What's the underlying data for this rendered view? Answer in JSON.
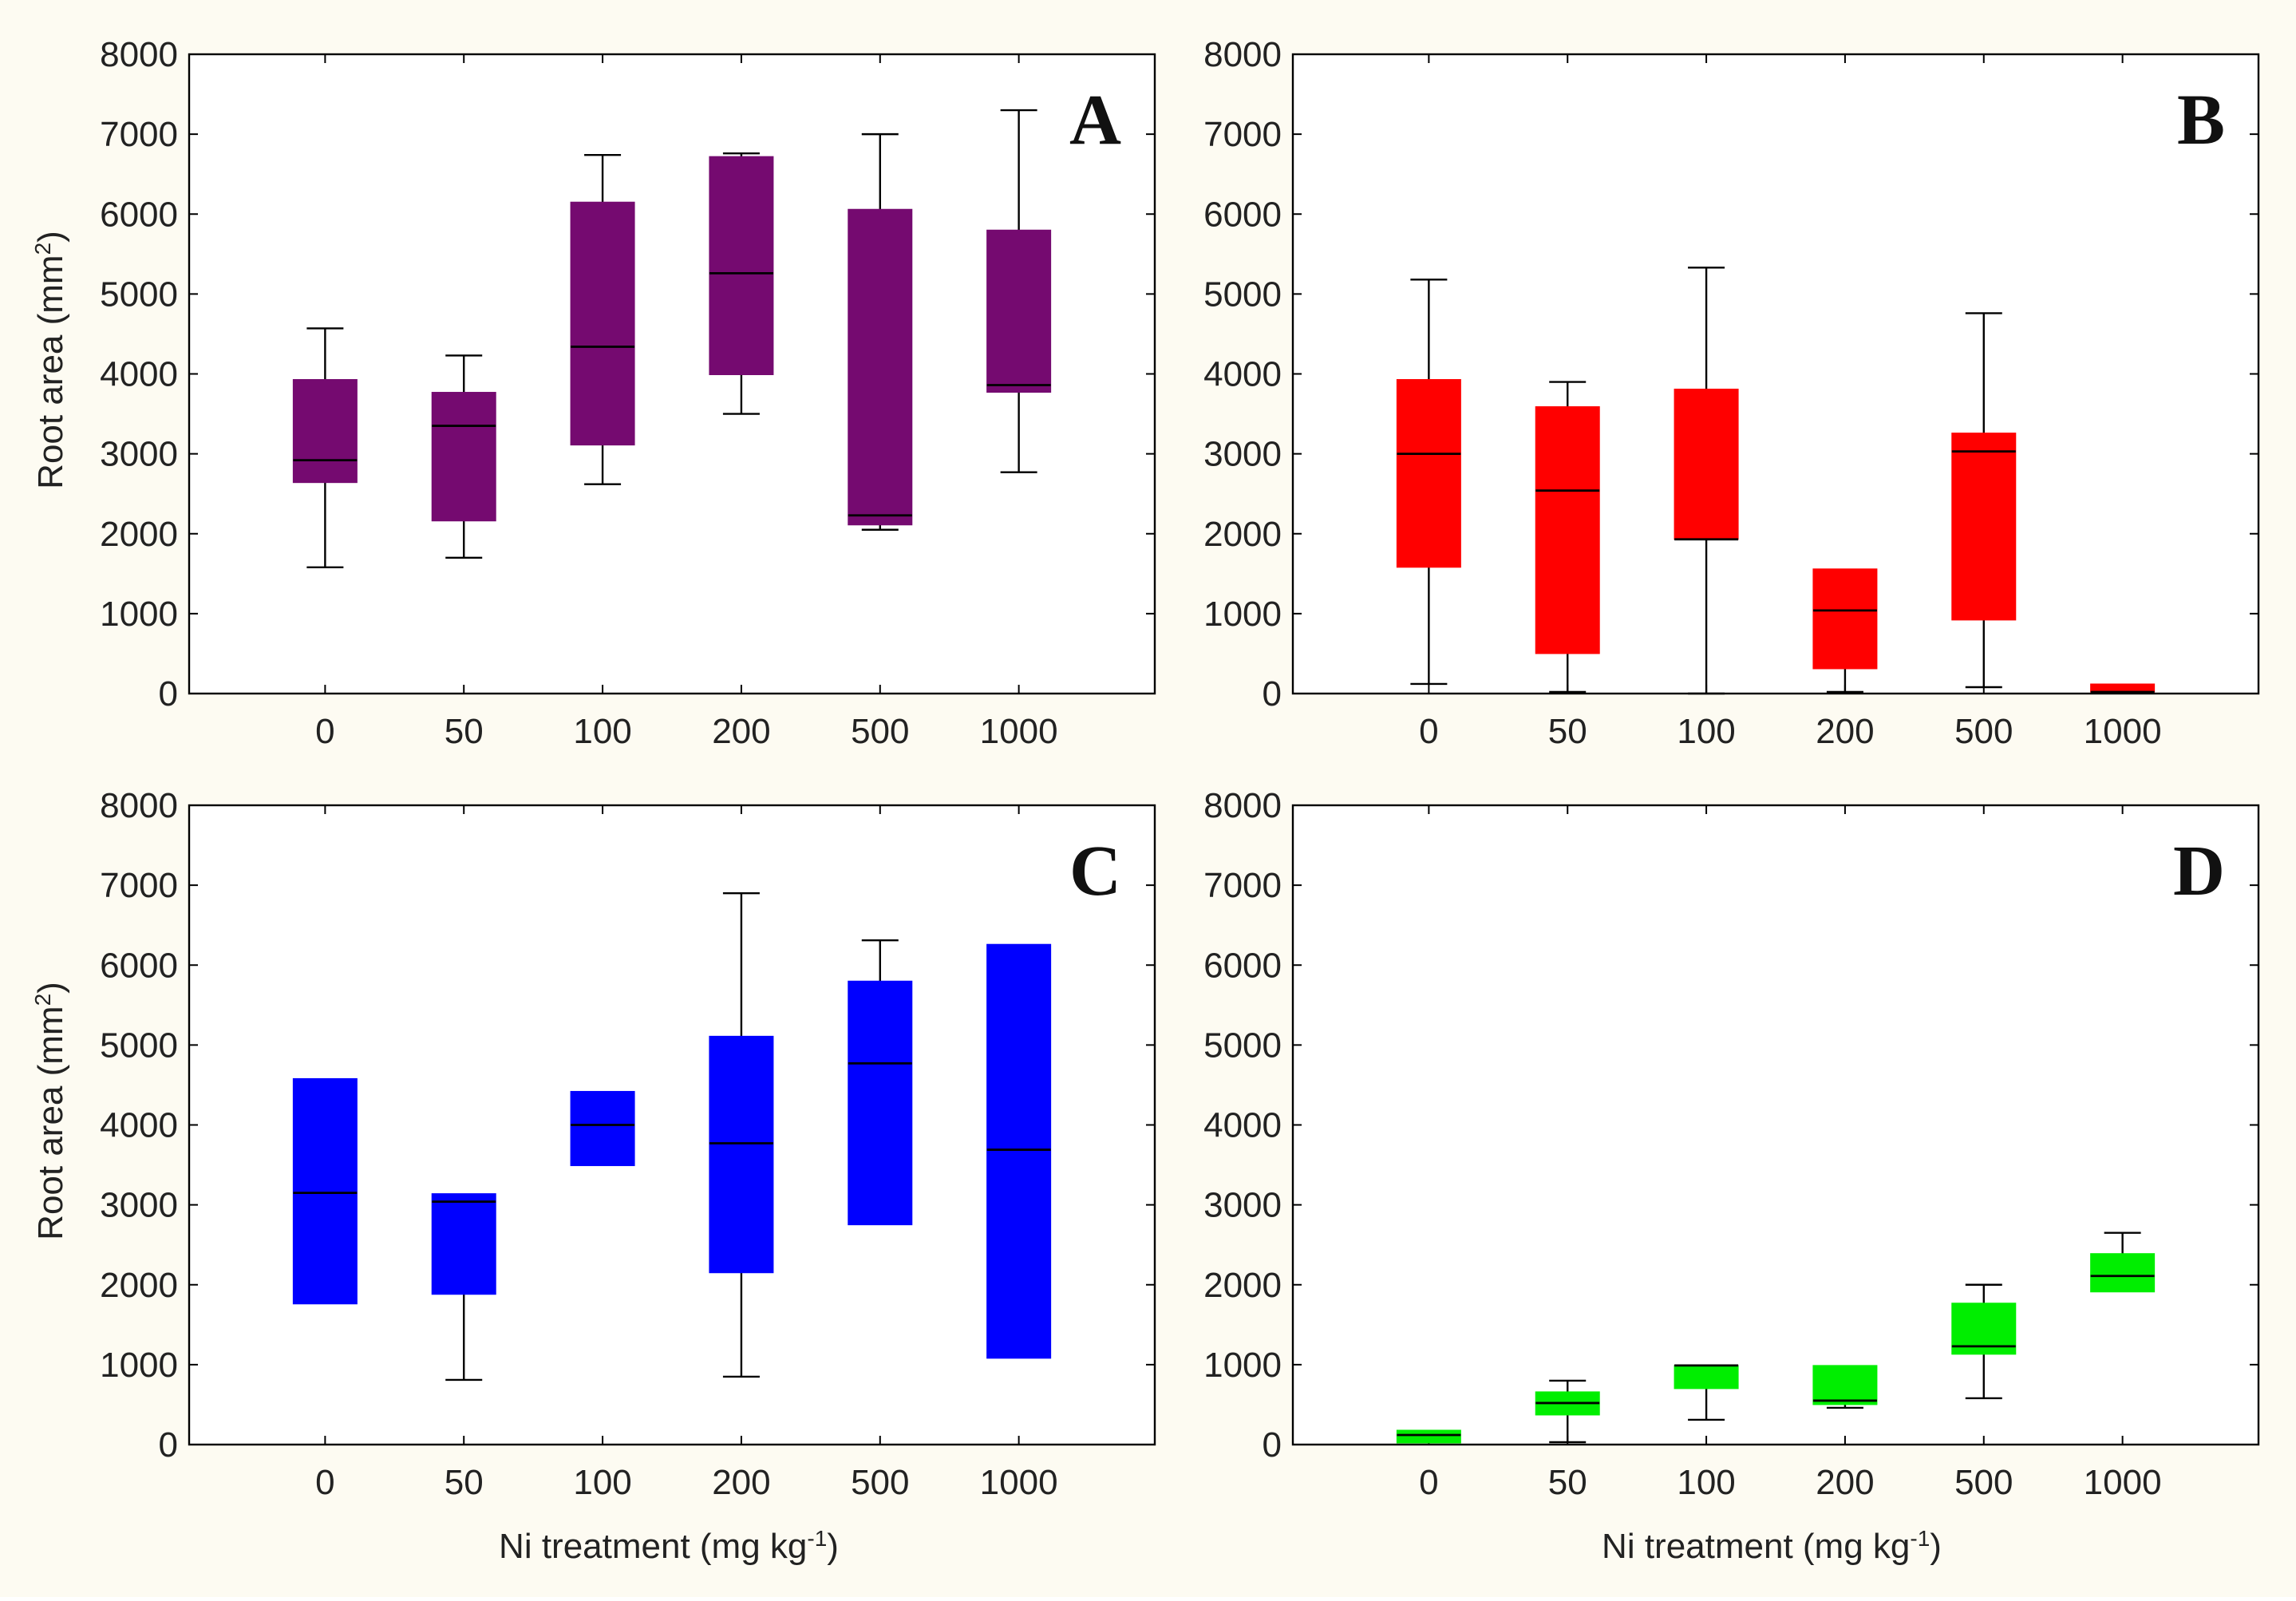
{
  "figure": {
    "background": "#fdfbf2",
    "ylabel_main": "Root area (mm",
    "ylabel_sup": "2",
    "ylabel_close": ")",
    "xlabel_main": "Ni treatment (mg kg",
    "xlabel_sup": "-1",
    "xlabel_close": ")"
  },
  "chart_data": [
    {
      "type": "box",
      "panel": "A",
      "color": "#750a70",
      "categories": [
        "0",
        "50",
        "100",
        "200",
        "500",
        "1000"
      ],
      "ylim": [
        0,
        8000
      ],
      "yticks": [
        0,
        1000,
        2000,
        3000,
        4000,
        5000,
        6000,
        7000,
        8000
      ],
      "grid": false,
      "boxes": [
        {
          "min": 1580,
          "q1": 2640,
          "median": 2920,
          "q3": 3930,
          "max": 4570
        },
        {
          "min": 1700,
          "q1": 2160,
          "median": 3350,
          "q3": 3770,
          "max": 4230
        },
        {
          "min": 2620,
          "q1": 3110,
          "median": 4340,
          "q3": 6150,
          "max": 6740
        },
        {
          "min": 3500,
          "q1": 3990,
          "median": 5260,
          "q3": 6720,
          "max": 6760
        },
        {
          "min": 2050,
          "q1": 2110,
          "median": 2230,
          "q3": 6060,
          "max": 7000
        },
        {
          "min": 2770,
          "q1": 3770,
          "median": 3860,
          "q3": 5800,
          "max": 7300
        }
      ]
    },
    {
      "type": "box",
      "panel": "B",
      "color": "#ff0000",
      "categories": [
        "0",
        "50",
        "100",
        "200",
        "500",
        "1000"
      ],
      "ylim": [
        0,
        8000
      ],
      "yticks": [
        0,
        1000,
        2000,
        3000,
        4000,
        5000,
        6000,
        7000,
        8000
      ],
      "grid": false,
      "boxes": [
        {
          "min": 120,
          "q1": 1580,
          "median": 3000,
          "q3": 3930,
          "max": 5180
        },
        {
          "min": 20,
          "q1": 500,
          "median": 2540,
          "q3": 3590,
          "max": 3900
        },
        {
          "min": 0,
          "q1": 1930,
          "median": 1930,
          "q3": 3810,
          "max": 5330
        },
        {
          "min": 20,
          "q1": 310,
          "median": 1040,
          "q3": 1560,
          "max": 1560
        },
        {
          "min": 80,
          "q1": 920,
          "median": 3030,
          "q3": 3260,
          "max": 4760
        },
        {
          "min": 20,
          "q1": 20,
          "median": 20,
          "q3": 120,
          "max": 120
        }
      ]
    },
    {
      "type": "box",
      "panel": "C",
      "color": "#0000ff",
      "categories": [
        "0",
        "50",
        "100",
        "200",
        "500",
        "1000"
      ],
      "ylim": [
        0,
        8000
      ],
      "yticks": [
        0,
        1000,
        2000,
        3000,
        4000,
        5000,
        6000,
        7000,
        8000
      ],
      "grid": false,
      "boxes": [
        {
          "min": 1760,
          "q1": 1760,
          "median": 3150,
          "q3": 4580,
          "max": 4580
        },
        {
          "min": 810,
          "q1": 1880,
          "median": 3040,
          "q3": 3140,
          "max": 3140
        },
        {
          "min": 3490,
          "q1": 3490,
          "median": 4000,
          "q3": 4420,
          "max": 4420
        },
        {
          "min": 850,
          "q1": 2150,
          "median": 3770,
          "q3": 5110,
          "max": 6900
        },
        {
          "min": 2750,
          "q1": 2750,
          "median": 4770,
          "q3": 5800,
          "max": 6310
        },
        {
          "min": 1080,
          "q1": 1080,
          "median": 3690,
          "q3": 6260,
          "max": 6260
        }
      ]
    },
    {
      "type": "box",
      "panel": "D",
      "color": "#00ee00",
      "categories": [
        "0",
        "50",
        "100",
        "200",
        "500",
        "1000"
      ],
      "ylim": [
        0,
        8000
      ],
      "yticks": [
        0,
        1000,
        2000,
        3000,
        4000,
        5000,
        6000,
        7000,
        8000
      ],
      "grid": false,
      "boxes": [
        {
          "min": 20,
          "q1": 20,
          "median": 120,
          "q3": 180,
          "max": 180
        },
        {
          "min": 30,
          "q1": 370,
          "median": 520,
          "q3": 660,
          "max": 800
        },
        {
          "min": 310,
          "q1": 700,
          "median": 990,
          "q3": 990,
          "max": 990
        },
        {
          "min": 460,
          "q1": 500,
          "median": 550,
          "q3": 990,
          "max": 990
        },
        {
          "min": 580,
          "q1": 1130,
          "median": 1230,
          "q3": 1770,
          "max": 2000
        },
        {
          "min": 1910,
          "q1": 1910,
          "median": 2110,
          "q3": 2390,
          "max": 2650
        }
      ]
    }
  ]
}
